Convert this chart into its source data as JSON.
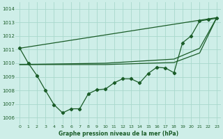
{
  "title": "Graphe pression niveau de la mer (hPa)",
  "background_color": "#ceeee8",
  "grid_color": "#a8d8cc",
  "line_color": "#1a5c28",
  "xlim": [
    -0.5,
    23.5
  ],
  "ylim": [
    1005.5,
    1014.5
  ],
  "yticks": [
    1006,
    1007,
    1008,
    1009,
    1010,
    1011,
    1012,
    1013,
    1014
  ],
  "xticks": [
    0,
    1,
    2,
    3,
    4,
    5,
    6,
    7,
    8,
    9,
    10,
    11,
    12,
    13,
    14,
    15,
    16,
    17,
    18,
    19,
    20,
    21,
    22,
    23
  ],
  "series_detailed": {
    "x": [
      0,
      1,
      2,
      3,
      4,
      5,
      6,
      7,
      8,
      9,
      10,
      11,
      12,
      13,
      14,
      15,
      16,
      17,
      18,
      19,
      20,
      21,
      22,
      23
    ],
    "y": [
      1011.1,
      1010.0,
      1009.1,
      1008.0,
      1006.95,
      1006.35,
      1006.65,
      1006.65,
      1007.75,
      1008.05,
      1008.1,
      1008.55,
      1008.85,
      1008.85,
      1008.55,
      1009.25,
      1009.7,
      1009.65,
      1009.3,
      1011.5,
      1012.0,
      1013.1,
      1013.2,
      1013.3
    ]
  },
  "series_line1": {
    "x": [
      0,
      23
    ],
    "y": [
      1011.1,
      1013.35
    ]
  },
  "series_line2": {
    "x": [
      0,
      10,
      18,
      21,
      23
    ],
    "y": [
      1009.9,
      1009.9,
      1010.05,
      1010.75,
      1013.35
    ]
  },
  "series_line3": {
    "x": [
      0,
      10,
      18,
      21,
      23
    ],
    "y": [
      1009.9,
      1010.0,
      1010.3,
      1011.1,
      1013.35
    ]
  }
}
